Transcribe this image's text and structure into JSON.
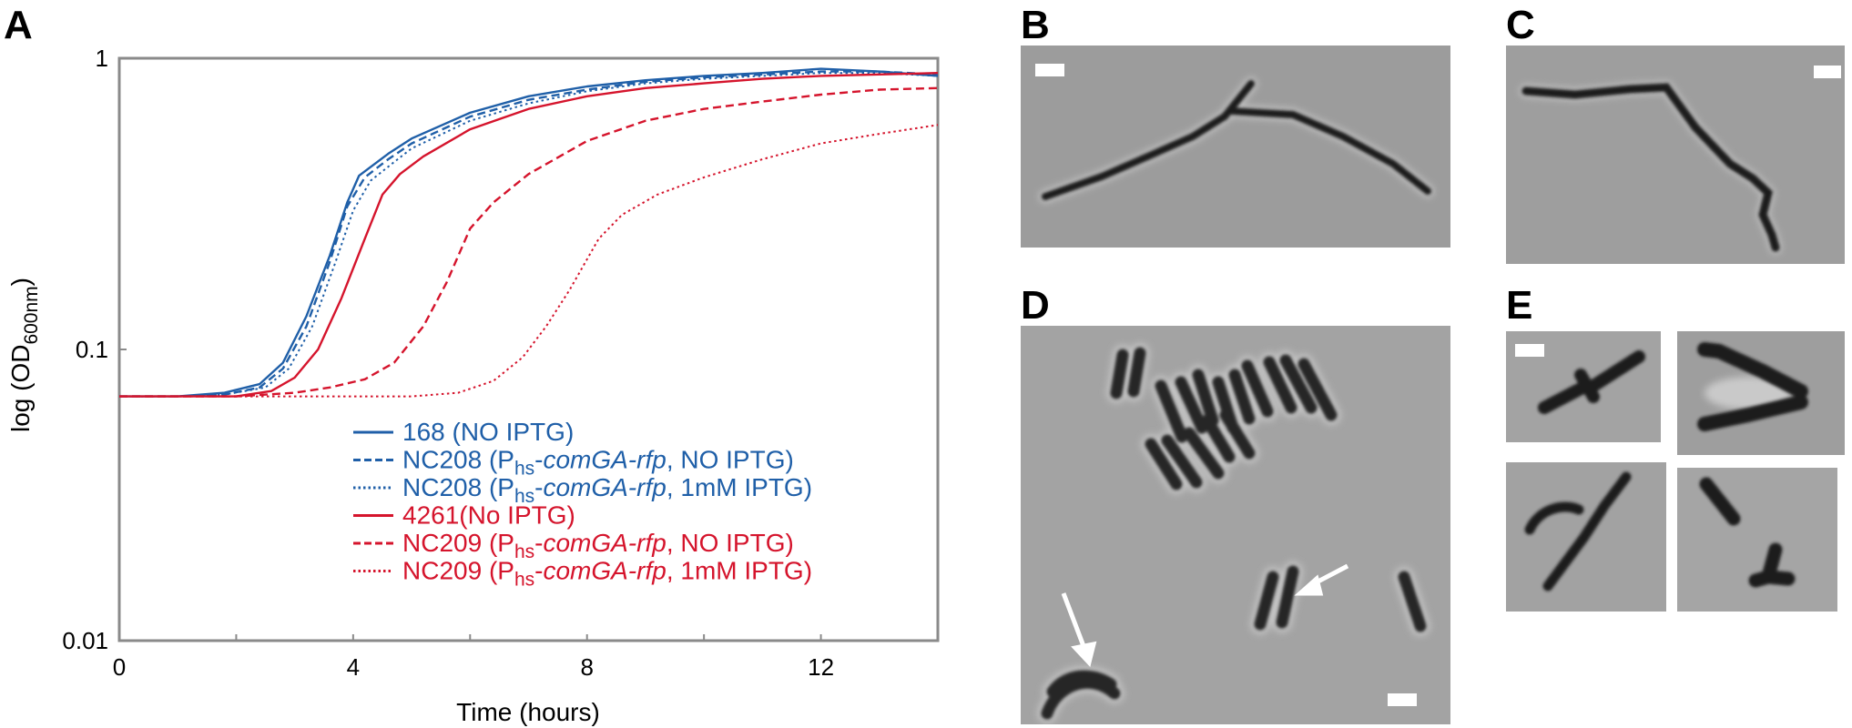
{
  "panels": {
    "A": "A",
    "B": "B",
    "C": "C",
    "D": "D",
    "E": "E"
  },
  "colors": {
    "blue": "#1f5fa8",
    "red": "#d5142c",
    "axis_frame": "#8a8a8a",
    "micro_background": "#9e9e9e",
    "micro_cell": "#1e1e1e",
    "scale_bar": "#ffffff"
  },
  "chart_data": {
    "type": "line",
    "xlabel": "Time (hours)",
    "ylabel_main": "log (OD",
    "ylabel_sub": "600nm",
    "ylabel_close": ")",
    "xlim": [
      0,
      14
    ],
    "ylim": [
      0.01,
      1
    ],
    "yscale": "log",
    "x_ticks": [
      0,
      4,
      8,
      12
    ],
    "x_tick_labels": [
      "0",
      "4",
      "8",
      "12"
    ],
    "y_ticks": [
      0.01,
      0.1,
      1
    ],
    "y_tick_labels": [
      "0.01",
      "0.1",
      "1"
    ],
    "grid": false,
    "legend_position": "bottom-right",
    "series": [
      {
        "key": "s168",
        "color": "blue",
        "dash": "solid",
        "legend_parts": [
          {
            "t": "168 (NO IPTG)"
          }
        ],
        "points": [
          [
            0,
            0.069
          ],
          [
            1,
            0.069
          ],
          [
            1.8,
            0.071
          ],
          [
            2.4,
            0.076
          ],
          [
            2.8,
            0.09
          ],
          [
            3.2,
            0.13
          ],
          [
            3.6,
            0.21
          ],
          [
            3.9,
            0.32
          ],
          [
            4.1,
            0.395
          ],
          [
            4.6,
            0.47
          ],
          [
            5,
            0.53
          ],
          [
            6,
            0.65
          ],
          [
            7,
            0.74
          ],
          [
            8,
            0.8
          ],
          [
            9,
            0.84
          ],
          [
            10,
            0.87
          ],
          [
            11,
            0.89
          ],
          [
            12,
            0.92
          ],
          [
            13,
            0.9
          ],
          [
            14,
            0.87
          ]
        ]
      },
      {
        "key": "nc208_no",
        "color": "blue",
        "dash": "dashed",
        "legend_parts": [
          {
            "t": "NC208 (P"
          },
          {
            "t": "hs",
            "sub": true
          },
          {
            "t": "-"
          },
          {
            "t": "comGA-rfp",
            "i": true
          },
          {
            "t": ", NO IPTG)"
          }
        ],
        "points": [
          [
            0,
            0.069
          ],
          [
            1,
            0.069
          ],
          [
            1.8,
            0.07
          ],
          [
            2.4,
            0.074
          ],
          [
            2.8,
            0.086
          ],
          [
            3.2,
            0.12
          ],
          [
            3.6,
            0.2
          ],
          [
            3.9,
            0.31
          ],
          [
            4.2,
            0.39
          ],
          [
            4.6,
            0.45
          ],
          [
            5,
            0.51
          ],
          [
            6,
            0.63
          ],
          [
            7,
            0.72
          ],
          [
            8,
            0.78
          ],
          [
            9,
            0.83
          ],
          [
            10,
            0.86
          ],
          [
            11,
            0.88
          ],
          [
            12,
            0.9
          ],
          [
            13,
            0.9
          ],
          [
            14,
            0.88
          ]
        ]
      },
      {
        "key": "nc208_1mm",
        "color": "blue",
        "dash": "dotted",
        "legend_parts": [
          {
            "t": "NC208 (P"
          },
          {
            "t": "hs",
            "sub": true
          },
          {
            "t": "-"
          },
          {
            "t": "comGA-rfp",
            "i": true
          },
          {
            "t": ", 1mM IPTG)"
          }
        ],
        "points": [
          [
            0,
            0.069
          ],
          [
            1,
            0.069
          ],
          [
            1.8,
            0.07
          ],
          [
            2.5,
            0.074
          ],
          [
            2.9,
            0.086
          ],
          [
            3.3,
            0.12
          ],
          [
            3.7,
            0.2
          ],
          [
            4,
            0.3
          ],
          [
            4.3,
            0.38
          ],
          [
            4.7,
            0.44
          ],
          [
            5,
            0.49
          ],
          [
            6,
            0.61
          ],
          [
            7,
            0.7
          ],
          [
            8,
            0.77
          ],
          [
            9,
            0.82
          ],
          [
            10,
            0.85
          ],
          [
            11,
            0.87
          ],
          [
            12,
            0.89
          ],
          [
            13,
            0.89
          ],
          [
            14,
            0.87
          ]
        ]
      },
      {
        "key": "s4261",
        "color": "red",
        "dash": "solid",
        "legend_parts": [
          {
            "t": "4261(No IPTG)"
          }
        ],
        "points": [
          [
            0,
            0.069
          ],
          [
            1,
            0.069
          ],
          [
            2,
            0.069
          ],
          [
            2.6,
            0.072
          ],
          [
            3,
            0.08
          ],
          [
            3.4,
            0.1
          ],
          [
            3.8,
            0.15
          ],
          [
            4.2,
            0.24
          ],
          [
            4.5,
            0.34
          ],
          [
            4.8,
            0.4
          ],
          [
            5.2,
            0.46
          ],
          [
            6,
            0.57
          ],
          [
            7,
            0.67
          ],
          [
            8,
            0.74
          ],
          [
            9,
            0.79
          ],
          [
            10,
            0.82
          ],
          [
            11,
            0.85
          ],
          [
            12,
            0.87
          ],
          [
            13,
            0.88
          ],
          [
            14,
            0.89
          ]
        ]
      },
      {
        "key": "nc209_no",
        "color": "red",
        "dash": "dashed",
        "legend_parts": [
          {
            "t": "NC209 (P"
          },
          {
            "t": "hs",
            "sub": true
          },
          {
            "t": "-"
          },
          {
            "t": "comGA-rfp",
            "i": true
          },
          {
            "t": ", NO IPTG)"
          }
        ],
        "points": [
          [
            0,
            0.069
          ],
          [
            1,
            0.069
          ],
          [
            2,
            0.069
          ],
          [
            3,
            0.071
          ],
          [
            3.6,
            0.074
          ],
          [
            4.2,
            0.079
          ],
          [
            4.7,
            0.09
          ],
          [
            5.2,
            0.12
          ],
          [
            5.6,
            0.17
          ],
          [
            6,
            0.26
          ],
          [
            6.4,
            0.32
          ],
          [
            7,
            0.4
          ],
          [
            8,
            0.52
          ],
          [
            9,
            0.61
          ],
          [
            10,
            0.67
          ],
          [
            11,
            0.71
          ],
          [
            12,
            0.75
          ],
          [
            13,
            0.78
          ],
          [
            14,
            0.79
          ]
        ]
      },
      {
        "key": "nc209_1mm",
        "color": "red",
        "dash": "dotted",
        "legend_parts": [
          {
            "t": "NC209 (P"
          },
          {
            "t": "hs",
            "sub": true
          },
          {
            "t": "-"
          },
          {
            "t": "comGA-rfp",
            "i": true
          },
          {
            "t": ", 1mM IPTG)"
          }
        ],
        "points": [
          [
            0,
            0.069
          ],
          [
            2,
            0.069
          ],
          [
            3,
            0.069
          ],
          [
            4,
            0.069
          ],
          [
            5,
            0.069
          ],
          [
            5.8,
            0.071
          ],
          [
            6.4,
            0.078
          ],
          [
            6.9,
            0.094
          ],
          [
            7.3,
            0.12
          ],
          [
            7.7,
            0.16
          ],
          [
            8.2,
            0.24
          ],
          [
            8.6,
            0.29
          ],
          [
            9.2,
            0.34
          ],
          [
            10,
            0.39
          ],
          [
            11,
            0.45
          ],
          [
            12,
            0.51
          ],
          [
            13,
            0.55
          ],
          [
            14,
            0.59
          ]
        ]
      }
    ]
  }
}
